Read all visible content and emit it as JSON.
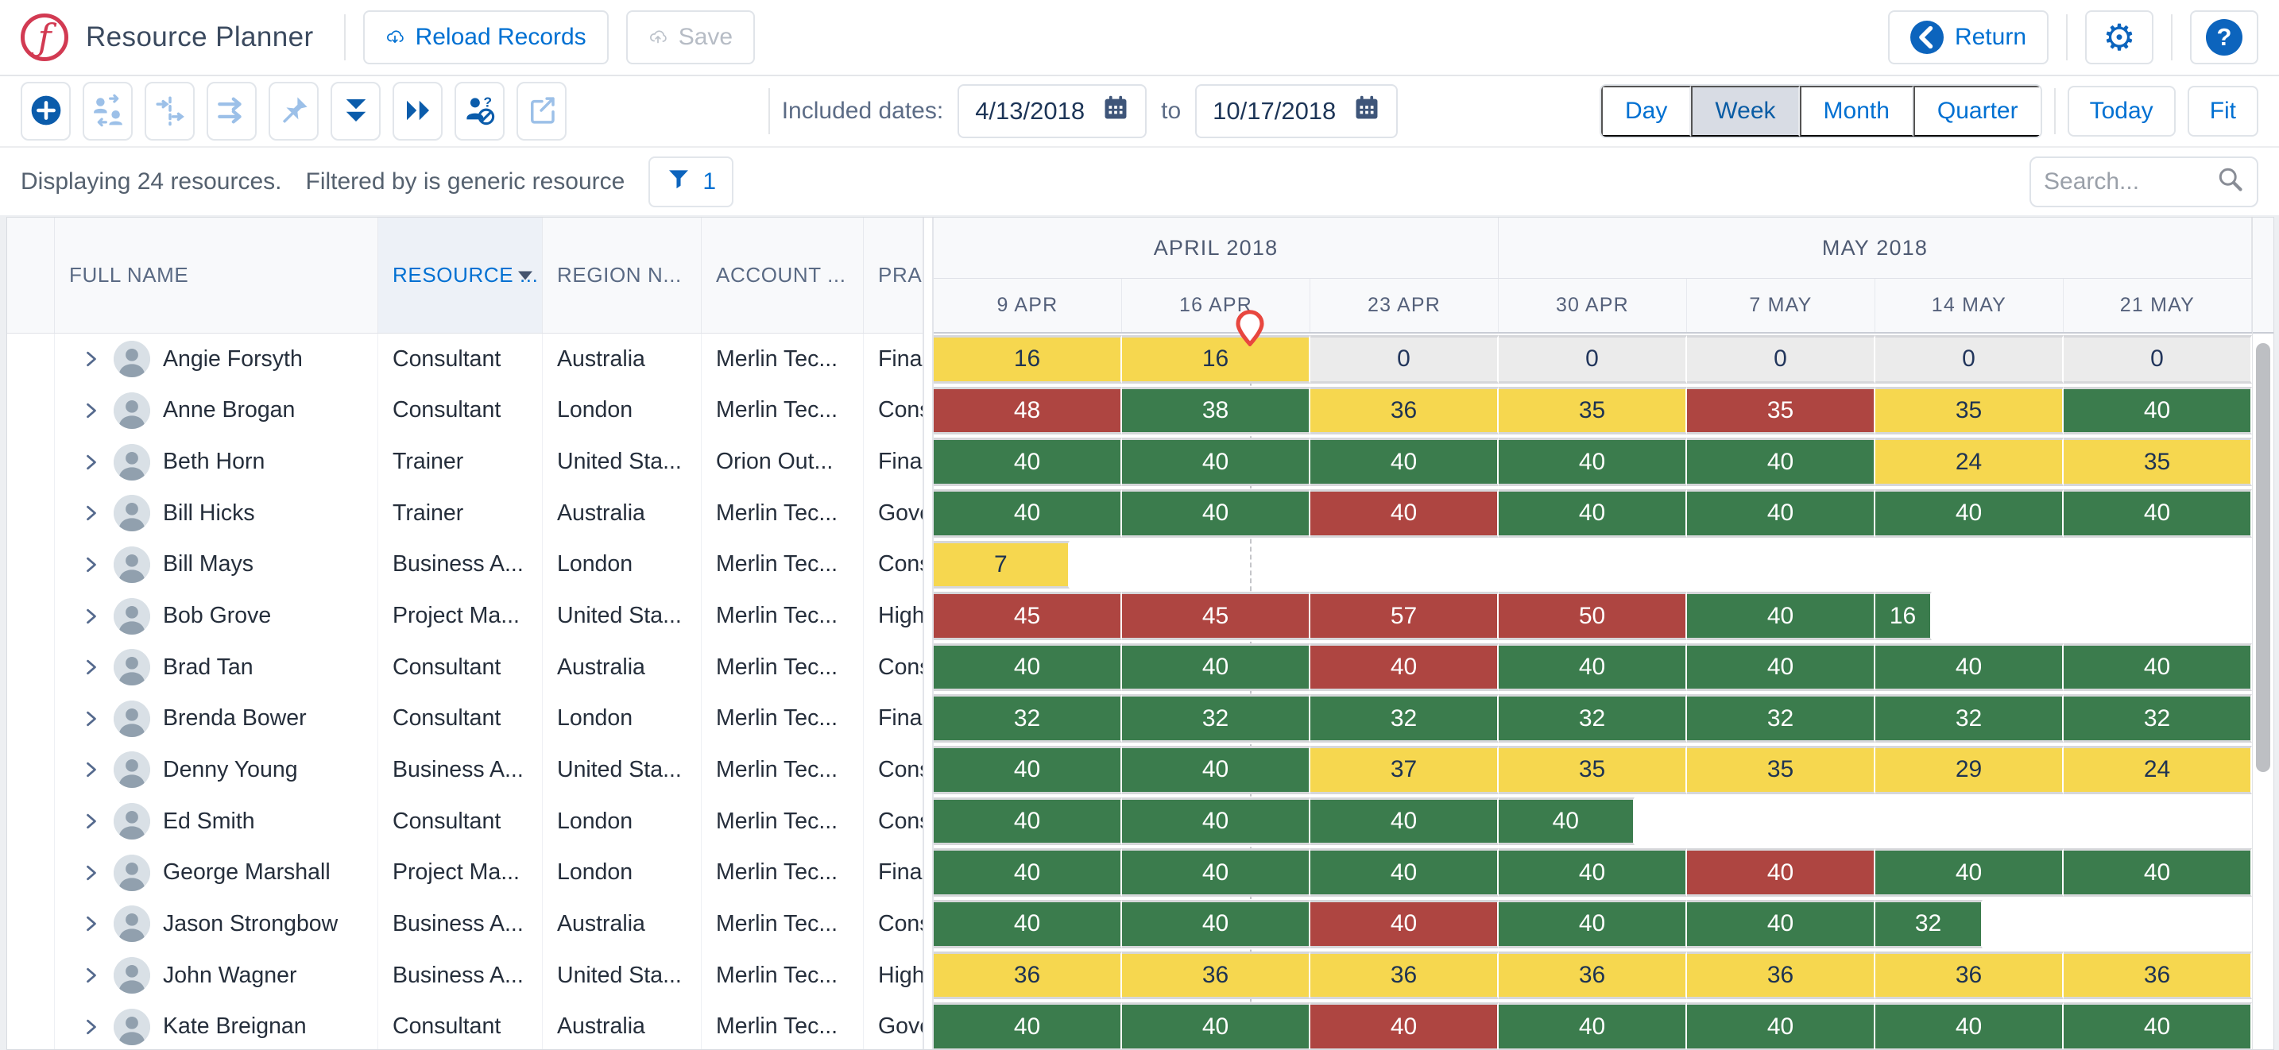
{
  "header": {
    "logo_glyph": "ƒ",
    "app_title": "Resource Planner",
    "reload_button": "Reload Records",
    "save_button": "Save",
    "return_button": "Return",
    "help_glyph": "?"
  },
  "toolbar": {
    "icon_names": [
      "add-resource",
      "swap-resources",
      "split-assignment",
      "move-assignment",
      "pin-assignment",
      "collapse-rows",
      "scroll-next",
      "toggle-unavailable-resources",
      "open-external"
    ],
    "included_dates_label": "Included dates:",
    "date_from": "4/13/2018",
    "to_label": "to",
    "date_to": "10/17/2018",
    "zoom_options": [
      "Day",
      "Week",
      "Month",
      "Quarter"
    ],
    "selected_zoom": "Week",
    "today_button": "Today",
    "fit_button": "Fit"
  },
  "filter_bar": {
    "display_summary": "Displaying 24 resources.",
    "filter_summary": "Filtered by is generic resource",
    "filter_count": "1",
    "search_placeholder": "Search..."
  },
  "grid": {
    "columns": {
      "full_name": "FULL NAME",
      "resource": "RESOURCE ...",
      "region": "REGION N...",
      "account": "ACCOUNT ...",
      "practice": "PRACTI"
    },
    "months": [
      {
        "label": "APRIL 2018",
        "weeks": 3
      },
      {
        "label": "MAY 2018",
        "weeks": 4
      }
    ],
    "weeks": [
      "9 APR",
      "16 APR",
      "23 APR",
      "30 APR",
      "7 MAY",
      "14 MAY",
      "21 MAY"
    ],
    "today_marker": {
      "position_weeks": 1.68
    },
    "resources": [
      {
        "name": "Angie Forsyth",
        "role": "Consultant",
        "region": "Australia",
        "account": "Merlin Tec...",
        "practice": "Financ",
        "cells": [
          {
            "value": "16",
            "status": "yellow"
          },
          {
            "value": "16",
            "status": "yellow"
          },
          {
            "value": "0",
            "status": "empty"
          },
          {
            "value": "0",
            "status": "empty"
          },
          {
            "value": "0",
            "status": "empty"
          },
          {
            "value": "0",
            "status": "empty"
          },
          {
            "value": "0",
            "status": "empty"
          }
        ]
      },
      {
        "name": "Anne Brogan",
        "role": "Consultant",
        "region": "London",
        "account": "Merlin Tec...",
        "practice": "Consu",
        "cells": [
          {
            "value": "48",
            "status": "red"
          },
          {
            "value": "38",
            "status": "green"
          },
          {
            "value": "36",
            "status": "yellow"
          },
          {
            "value": "35",
            "status": "yellow"
          },
          {
            "value": "35",
            "status": "red"
          },
          {
            "value": "35",
            "status": "yellow"
          },
          {
            "value": "40",
            "status": "green"
          }
        ]
      },
      {
        "name": "Beth Horn",
        "role": "Trainer",
        "region": "United Sta...",
        "account": "Orion Out...",
        "practice": "Financ",
        "cells": [
          {
            "value": "40",
            "status": "green"
          },
          {
            "value": "40",
            "status": "green"
          },
          {
            "value": "40",
            "status": "green"
          },
          {
            "value": "40",
            "status": "green"
          },
          {
            "value": "40",
            "status": "green"
          },
          {
            "value": "24",
            "status": "yellow"
          },
          {
            "value": "35",
            "status": "yellow"
          }
        ]
      },
      {
        "name": "Bill Hicks",
        "role": "Trainer",
        "region": "Australia",
        "account": "Merlin Tec...",
        "practice": "Gover",
        "cells": [
          {
            "value": "40",
            "status": "green"
          },
          {
            "value": "40",
            "status": "green"
          },
          {
            "value": "40",
            "status": "red"
          },
          {
            "value": "40",
            "status": "green"
          },
          {
            "value": "40",
            "status": "green"
          },
          {
            "value": "40",
            "status": "green"
          },
          {
            "value": "40",
            "status": "green"
          }
        ]
      },
      {
        "name": "Bill Mays",
        "role": "Business A...",
        "region": "London",
        "account": "Merlin Tec...",
        "practice": "Consu",
        "cells": [
          {
            "value": "7",
            "status": "yellow",
            "width": 0.72
          },
          null,
          null,
          null,
          null,
          null,
          null
        ]
      },
      {
        "name": "Bob Grove",
        "role": "Project Ma...",
        "region": "United Sta...",
        "account": "Merlin Tec...",
        "practice": "High T",
        "cells": [
          {
            "value": "45",
            "status": "red"
          },
          {
            "value": "45",
            "status": "red"
          },
          {
            "value": "57",
            "status": "red"
          },
          {
            "value": "50",
            "status": "red"
          },
          {
            "value": "40",
            "status": "green"
          },
          {
            "value": "16",
            "status": "green",
            "width": 0.3
          },
          null
        ]
      },
      {
        "name": "Brad Tan",
        "role": "Consultant",
        "region": "Australia",
        "account": "Merlin Tec...",
        "practice": "Consu",
        "cells": [
          {
            "value": "40",
            "status": "green"
          },
          {
            "value": "40",
            "status": "green"
          },
          {
            "value": "40",
            "status": "red"
          },
          {
            "value": "40",
            "status": "green"
          },
          {
            "value": "40",
            "status": "green"
          },
          {
            "value": "40",
            "status": "green"
          },
          {
            "value": "40",
            "status": "green"
          }
        ]
      },
      {
        "name": "Brenda Bower",
        "role": "Consultant",
        "region": "London",
        "account": "Merlin Tec...",
        "practice": "Financ",
        "cells": [
          {
            "value": "32",
            "status": "green"
          },
          {
            "value": "32",
            "status": "green"
          },
          {
            "value": "32",
            "status": "green"
          },
          {
            "value": "32",
            "status": "green"
          },
          {
            "value": "32",
            "status": "green"
          },
          {
            "value": "32",
            "status": "green"
          },
          {
            "value": "32",
            "status": "green"
          }
        ]
      },
      {
        "name": "Denny Young",
        "role": "Business A...",
        "region": "United Sta...",
        "account": "Merlin Tec...",
        "practice": "Consu",
        "cells": [
          {
            "value": "40",
            "status": "green"
          },
          {
            "value": "40",
            "status": "green"
          },
          {
            "value": "37",
            "status": "yellow"
          },
          {
            "value": "35",
            "status": "yellow"
          },
          {
            "value": "35",
            "status": "yellow"
          },
          {
            "value": "29",
            "status": "yellow"
          },
          {
            "value": "24",
            "status": "yellow"
          }
        ]
      },
      {
        "name": "Ed Smith",
        "role": "Consultant",
        "region": "London",
        "account": "Merlin Tec...",
        "practice": "Consu",
        "cells": [
          {
            "value": "40",
            "status": "green"
          },
          {
            "value": "40",
            "status": "green"
          },
          {
            "value": "40",
            "status": "green"
          },
          {
            "value": "40",
            "status": "green",
            "width": 0.72
          },
          null,
          null,
          null
        ]
      },
      {
        "name": "George Marshall",
        "role": "Project Ma...",
        "region": "London",
        "account": "Merlin Tec...",
        "practice": "Financ",
        "cells": [
          {
            "value": "40",
            "status": "green"
          },
          {
            "value": "40",
            "status": "green"
          },
          {
            "value": "40",
            "status": "green"
          },
          {
            "value": "40",
            "status": "green"
          },
          {
            "value": "40",
            "status": "red"
          },
          {
            "value": "40",
            "status": "green"
          },
          {
            "value": "40",
            "status": "green"
          }
        ]
      },
      {
        "name": "Jason Strongbow",
        "role": "Business A...",
        "region": "Australia",
        "account": "Merlin Tec...",
        "practice": "Consu",
        "cells": [
          {
            "value": "40",
            "status": "green"
          },
          {
            "value": "40",
            "status": "green"
          },
          {
            "value": "40",
            "status": "red"
          },
          {
            "value": "40",
            "status": "green"
          },
          {
            "value": "40",
            "status": "green"
          },
          {
            "value": "32",
            "status": "green",
            "width": 0.57
          },
          null
        ]
      },
      {
        "name": "John Wagner",
        "role": "Business A...",
        "region": "United Sta...",
        "account": "Merlin Tec...",
        "practice": "High T",
        "cells": [
          {
            "value": "36",
            "status": "yellow"
          },
          {
            "value": "36",
            "status": "yellow"
          },
          {
            "value": "36",
            "status": "yellow"
          },
          {
            "value": "36",
            "status": "yellow"
          },
          {
            "value": "36",
            "status": "yellow"
          },
          {
            "value": "36",
            "status": "yellow"
          },
          {
            "value": "36",
            "status": "yellow"
          }
        ]
      },
      {
        "name": "Kate Breignan",
        "role": "Consultant",
        "region": "Australia",
        "account": "Merlin Tec...",
        "practice": "Gover",
        "cells": [
          {
            "value": "40",
            "status": "green"
          },
          {
            "value": "40",
            "status": "green"
          },
          {
            "value": "40",
            "status": "red"
          },
          {
            "value": "40",
            "status": "green"
          },
          {
            "value": "40",
            "status": "green"
          },
          {
            "value": "40",
            "status": "green"
          },
          {
            "value": "40",
            "status": "green"
          }
        ]
      }
    ]
  },
  "colors": {
    "green": "#3b7c4d",
    "red": "#ae4541",
    "yellow": "#f6d74f",
    "empty": "#ebebeb",
    "accent_blue": "#0070d2",
    "marker_red": "#e8473f"
  }
}
